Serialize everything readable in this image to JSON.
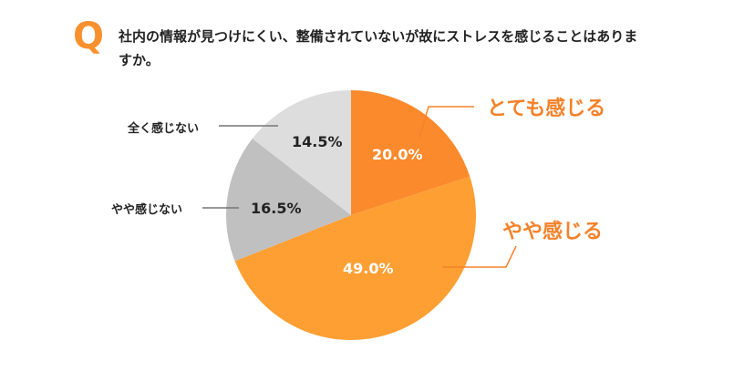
{
  "question": {
    "mark": "Q",
    "text": "社内の情報が見つけにくい、整備されていないが故にストレスを感じることはありますか。"
  },
  "chart_data": {
    "type": "pie",
    "title": "社内の情報が見つけにくい、整備されていないが故にストレスを感じることはありますか。",
    "start_angle": "12 o'clock, clockwise",
    "slices": [
      {
        "label": "とても感じる",
        "value": 20.0,
        "display": "20.0%",
        "color": "#fb8a2c"
      },
      {
        "label": "やや感じる",
        "value": 49.0,
        "display": "49.0%",
        "color": "#fd9f33"
      },
      {
        "label": "やや感じない",
        "value": 16.5,
        "display": "16.5%",
        "color": "#c0c0c0"
      },
      {
        "label": "全く感じない",
        "value": 14.5,
        "display": "14.5%",
        "color": "#dddddd"
      }
    ]
  }
}
